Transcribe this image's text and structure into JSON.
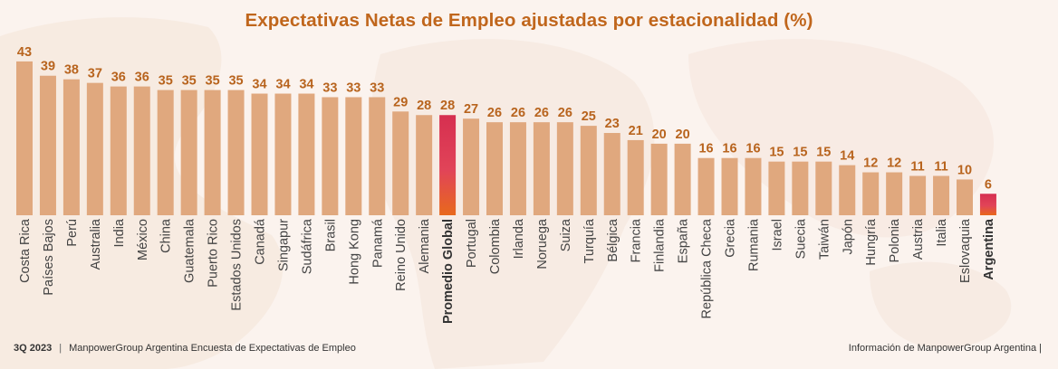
{
  "chart_data": {
    "type": "bar",
    "title": "Expectativas Netas de Empleo ajustadas por estacionalidad (%)",
    "xlabel": "",
    "ylabel": "",
    "ylim": [
      0,
      45
    ],
    "grid": false,
    "legend": "none",
    "categories": [
      "Costa Rica",
      "Países Bajos",
      "Perú",
      "Australia",
      "India",
      "México",
      "China",
      "Guatemala",
      "Puerto Rico",
      "Estados Unidos",
      "Canadá",
      "Singapur",
      "Sudáfrica",
      "Brasil",
      "Hong Kong",
      "Panamá",
      "Reino Unido",
      "Alemania",
      "Promedio Global",
      "Portugal",
      "Colombia",
      "Irlanda",
      "Noruega",
      "Suiza",
      "Turquía",
      "Bélgica",
      "Francia",
      "Finlandia",
      "España",
      "República Checa",
      "Grecia",
      "Rumania",
      "Israel",
      "Suecia",
      "Taiwán",
      "Japón",
      "Hungría",
      "Polonia",
      "Austria",
      "Italia",
      "Eslovaquia",
      "Argentina"
    ],
    "values": [
      43,
      39,
      38,
      37,
      36,
      36,
      35,
      35,
      35,
      35,
      34,
      34,
      34,
      33,
      33,
      33,
      29,
      28,
      28,
      27,
      26,
      26,
      26,
      26,
      25,
      23,
      21,
      20,
      20,
      16,
      16,
      16,
      15,
      15,
      15,
      14,
      12,
      12,
      11,
      11,
      10,
      6
    ],
    "highlighted": [
      "Promedio Global",
      "Argentina"
    ],
    "colors": {
      "bar": "#e0a87e",
      "highlight_top": "#d62f50",
      "highlight_mid": "#e14458",
      "highlight_bottom": "#e8691c",
      "value_label": "#b8641e",
      "title": "#c0661c"
    }
  },
  "footer": {
    "quarter": "3Q 2023",
    "separator": "|",
    "survey": "ManpowerGroup Argentina Encuesta de Expectativas  de Empleo",
    "source": "Información de ManpowerGroup Argentina |"
  }
}
